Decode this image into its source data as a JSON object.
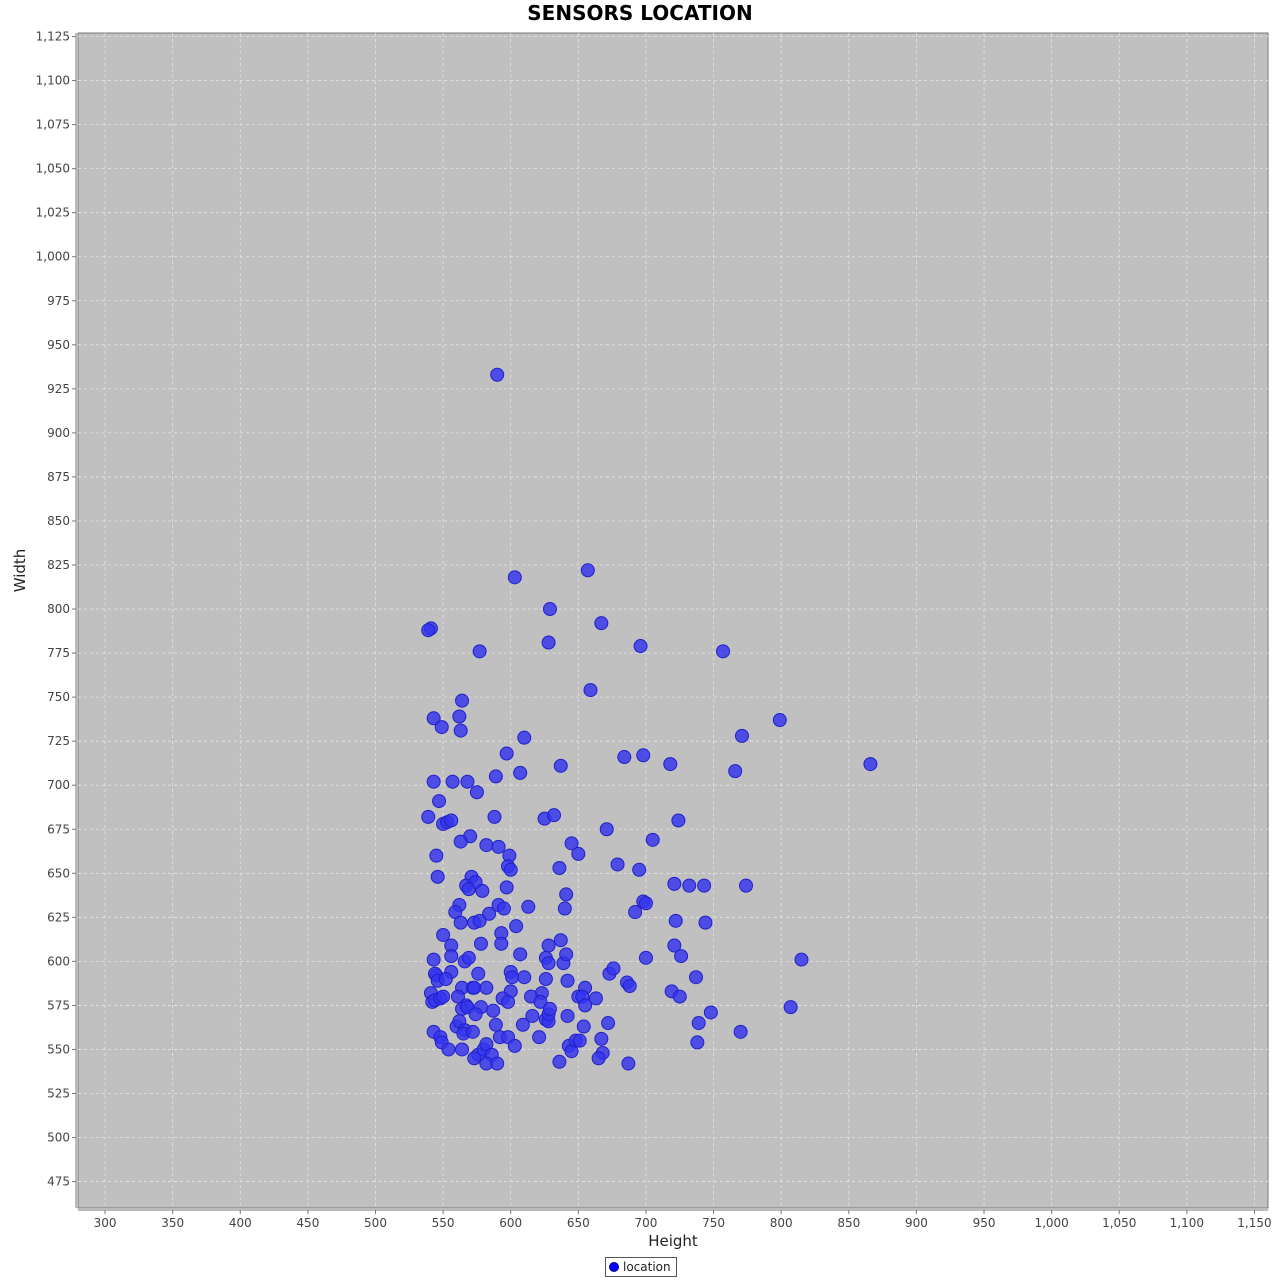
{
  "chart_data": {
    "type": "scatter",
    "title": "SENSORS LOCATION",
    "xlabel": "Height",
    "ylabel": "Width",
    "xlim": [
      280,
      1160
    ],
    "ylim": [
      460,
      1127
    ],
    "xticks": [
      300,
      350,
      400,
      450,
      500,
      550,
      600,
      650,
      700,
      750,
      800,
      850,
      900,
      950,
      1000,
      1050,
      1100,
      1150
    ],
    "yticks": [
      475,
      500,
      525,
      550,
      575,
      600,
      625,
      650,
      675,
      700,
      725,
      750,
      775,
      800,
      825,
      850,
      875,
      900,
      925,
      950,
      975,
      1000,
      1025,
      1050,
      1075,
      1100,
      1125
    ],
    "tick_format": "thousands-comma",
    "grid": true,
    "plot_background": "#c0c0c0",
    "gridline_color": "#e4e4e4",
    "legend_position": "bottom-center",
    "series": [
      {
        "name": "location",
        "color": "#3333ee",
        "points": [
          [
            590,
            933
          ],
          [
            603,
            818
          ],
          [
            657,
            822
          ],
          [
            629,
            800
          ],
          [
            667,
            792
          ],
          [
            541,
            789
          ],
          [
            539,
            788
          ],
          [
            577,
            776
          ],
          [
            628,
            781
          ],
          [
            696,
            779
          ],
          [
            757,
            776
          ],
          [
            659,
            754
          ],
          [
            799,
            737
          ],
          [
            564,
            748
          ],
          [
            543,
            738
          ],
          [
            562,
            739
          ],
          [
            549,
            733
          ],
          [
            563,
            731
          ],
          [
            610,
            727
          ],
          [
            771,
            728
          ],
          [
            597,
            718
          ],
          [
            684,
            716
          ],
          [
            698,
            717
          ],
          [
            718,
            712
          ],
          [
            637,
            711
          ],
          [
            866,
            712
          ],
          [
            766,
            708
          ],
          [
            607,
            707
          ],
          [
            589,
            705
          ],
          [
            543,
            702
          ],
          [
            557,
            702
          ],
          [
            568,
            702
          ],
          [
            575,
            696
          ],
          [
            547,
            691
          ],
          [
            539,
            682
          ],
          [
            550,
            678
          ],
          [
            553,
            679
          ],
          [
            556,
            680
          ],
          [
            588,
            682
          ],
          [
            625,
            681
          ],
          [
            632,
            683
          ],
          [
            724,
            680
          ],
          [
            671,
            675
          ],
          [
            570,
            671
          ],
          [
            563,
            668
          ],
          [
            582,
            666
          ],
          [
            591,
            665
          ],
          [
            645,
            667
          ],
          [
            705,
            669
          ],
          [
            545,
            660
          ],
          [
            599,
            660
          ],
          [
            650,
            661
          ],
          [
            598,
            654
          ],
          [
            600,
            652
          ],
          [
            636,
            653
          ],
          [
            679,
            655
          ],
          [
            695,
            652
          ],
          [
            546,
            648
          ],
          [
            571,
            648
          ],
          [
            567,
            643
          ],
          [
            574,
            645
          ],
          [
            579,
            640
          ],
          [
            569,
            641
          ],
          [
            597,
            642
          ],
          [
            721,
            644
          ],
          [
            732,
            643
          ],
          [
            743,
            643
          ],
          [
            774,
            643
          ],
          [
            641,
            638
          ],
          [
            562,
            632
          ],
          [
            559,
            628
          ],
          [
            591,
            632
          ],
          [
            595,
            630
          ],
          [
            584,
            627
          ],
          [
            613,
            631
          ],
          [
            640,
            630
          ],
          [
            692,
            628
          ],
          [
            698,
            634
          ],
          [
            700,
            633
          ],
          [
            563,
            622
          ],
          [
            573,
            622
          ],
          [
            577,
            623
          ],
          [
            604,
            620
          ],
          [
            722,
            623
          ],
          [
            744,
            622
          ],
          [
            550,
            615
          ],
          [
            593,
            616
          ],
          [
            556,
            609
          ],
          [
            578,
            610
          ],
          [
            593,
            610
          ],
          [
            628,
            609
          ],
          [
            637,
            612
          ],
          [
            721,
            609
          ],
          [
            543,
            601
          ],
          [
            556,
            603
          ],
          [
            566,
            600
          ],
          [
            569,
            602
          ],
          [
            607,
            604
          ],
          [
            626,
            602
          ],
          [
            628,
            599
          ],
          [
            639,
            599
          ],
          [
            641,
            604
          ],
          [
            700,
            602
          ],
          [
            726,
            603
          ],
          [
            815,
            601
          ],
          [
            545,
            592
          ],
          [
            544,
            593
          ],
          [
            556,
            594
          ],
          [
            576,
            593
          ],
          [
            600,
            594
          ],
          [
            601,
            591
          ],
          [
            610,
            591
          ],
          [
            626,
            590
          ],
          [
            642,
            589
          ],
          [
            673,
            593
          ],
          [
            676,
            596
          ],
          [
            686,
            588
          ],
          [
            688,
            586
          ],
          [
            737,
            591
          ],
          [
            541,
            582
          ],
          [
            546,
            589
          ],
          [
            552,
            590
          ],
          [
            564,
            585
          ],
          [
            572,
            585
          ],
          [
            573,
            585
          ],
          [
            582,
            585
          ],
          [
            600,
            583
          ],
          [
            623,
            582
          ],
          [
            615,
            580
          ],
          [
            655,
            585
          ],
          [
            561,
            580
          ],
          [
            542,
            577
          ],
          [
            544,
            578
          ],
          [
            548,
            579
          ],
          [
            550,
            580
          ],
          [
            567,
            575
          ],
          [
            578,
            574
          ],
          [
            594,
            579
          ],
          [
            598,
            577
          ],
          [
            622,
            577
          ],
          [
            650,
            580
          ],
          [
            653,
            580
          ],
          [
            655,
            575
          ],
          [
            663,
            579
          ],
          [
            719,
            583
          ],
          [
            725,
            580
          ],
          [
            564,
            573
          ],
          [
            568,
            574
          ],
          [
            574,
            570
          ],
          [
            587,
            572
          ],
          [
            626,
            567
          ],
          [
            628,
            566
          ],
          [
            628,
            570
          ],
          [
            629,
            573
          ],
          [
            616,
            569
          ],
          [
            642,
            569
          ],
          [
            672,
            565
          ],
          [
            739,
            565
          ],
          [
            748,
            571
          ],
          [
            807,
            574
          ],
          [
            543,
            560
          ],
          [
            560,
            563
          ],
          [
            562,
            566
          ],
          [
            566,
            561
          ],
          [
            565,
            559
          ],
          [
            572,
            560
          ],
          [
            589,
            564
          ],
          [
            592,
            557
          ],
          [
            598,
            557
          ],
          [
            609,
            564
          ],
          [
            621,
            557
          ],
          [
            654,
            563
          ],
          [
            667,
            556
          ],
          [
            738,
            554
          ],
          [
            770,
            560
          ],
          [
            548,
            557
          ],
          [
            549,
            554
          ],
          [
            554,
            550
          ],
          [
            564,
            550
          ],
          [
            576,
            547
          ],
          [
            580,
            550
          ],
          [
            582,
            553
          ],
          [
            586,
            547
          ],
          [
            582,
            542
          ],
          [
            573,
            545
          ],
          [
            590,
            542
          ],
          [
            603,
            552
          ],
          [
            636,
            543
          ],
          [
            643,
            552
          ],
          [
            645,
            549
          ],
          [
            648,
            555
          ],
          [
            651,
            555
          ],
          [
            668,
            548
          ],
          [
            665,
            545
          ],
          [
            687,
            542
          ]
        ]
      }
    ]
  }
}
